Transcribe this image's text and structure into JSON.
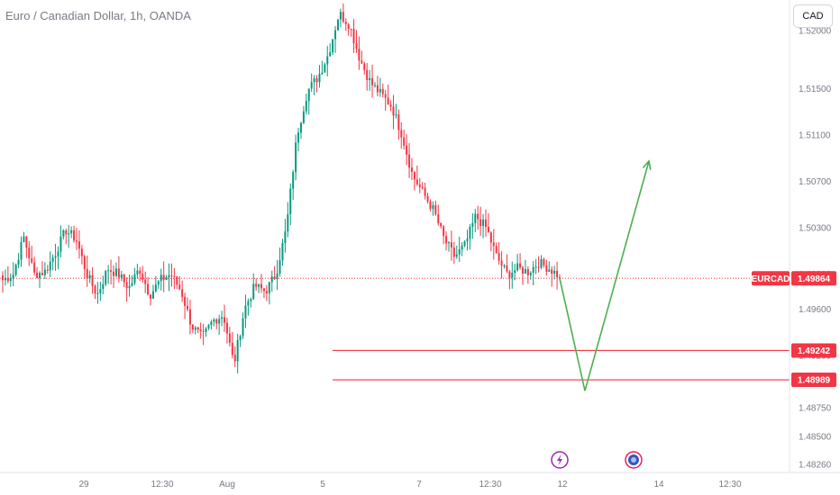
{
  "header": {
    "title": "Euro / Canadian Dollar, 1h, OANDA",
    "currency_button": "CAD"
  },
  "chart_data": {
    "type": "candlestick",
    "symbol": "EURCAD",
    "y_ticks": [
      "1.52000",
      "1.51500",
      "1.51100",
      "1.50700",
      "1.50300",
      "1.49900",
      "1.49600",
      "1.49200",
      "1.48750",
      "1.48500",
      "1.48260"
    ],
    "y_tick_values": [
      1.52,
      1.515,
      1.511,
      1.507,
      1.503,
      1.499,
      1.496,
      1.492,
      1.4875,
      1.485,
      1.4826
    ],
    "x_ticks": [
      "29",
      "12:30",
      "Aug",
      "5",
      "7",
      "12:30",
      "12",
      "14",
      "12:30"
    ],
    "current_price": {
      "label": "EURCAD",
      "value": "1.49864",
      "price": 1.49864
    },
    "levels": [
      {
        "value": "1.49242",
        "price": 1.49242
      },
      {
        "value": "1.48989",
        "price": 1.48989
      }
    ],
    "close_path": [
      1.4985,
      1.499,
      1.5022,
      1.499,
      1.4992,
      1.5008,
      1.5028,
      1.502,
      1.499,
      1.4972,
      1.4995,
      1.499,
      1.4978,
      1.4995,
      1.4972,
      1.4985,
      1.499,
      1.4975,
      1.4945,
      1.4935,
      1.495,
      1.4955,
      1.4912,
      1.496,
      1.498,
      1.4975,
      1.499,
      1.503,
      1.511,
      1.5148,
      1.516,
      1.518,
      1.5215,
      1.5205,
      1.5175,
      1.5155,
      1.5145,
      1.5135,
      1.511,
      1.5075,
      1.506,
      1.5045,
      1.502,
      1.5005,
      1.5015,
      1.504,
      1.503,
      1.5005,
      1.499,
      1.4995,
      1.4992,
      1.5,
      1.4995,
      1.4988
    ],
    "projection": [
      1.49864,
      1.48895,
      1.50875
    ],
    "annotations": [
      "lightning-event",
      "calendar-event"
    ]
  }
}
